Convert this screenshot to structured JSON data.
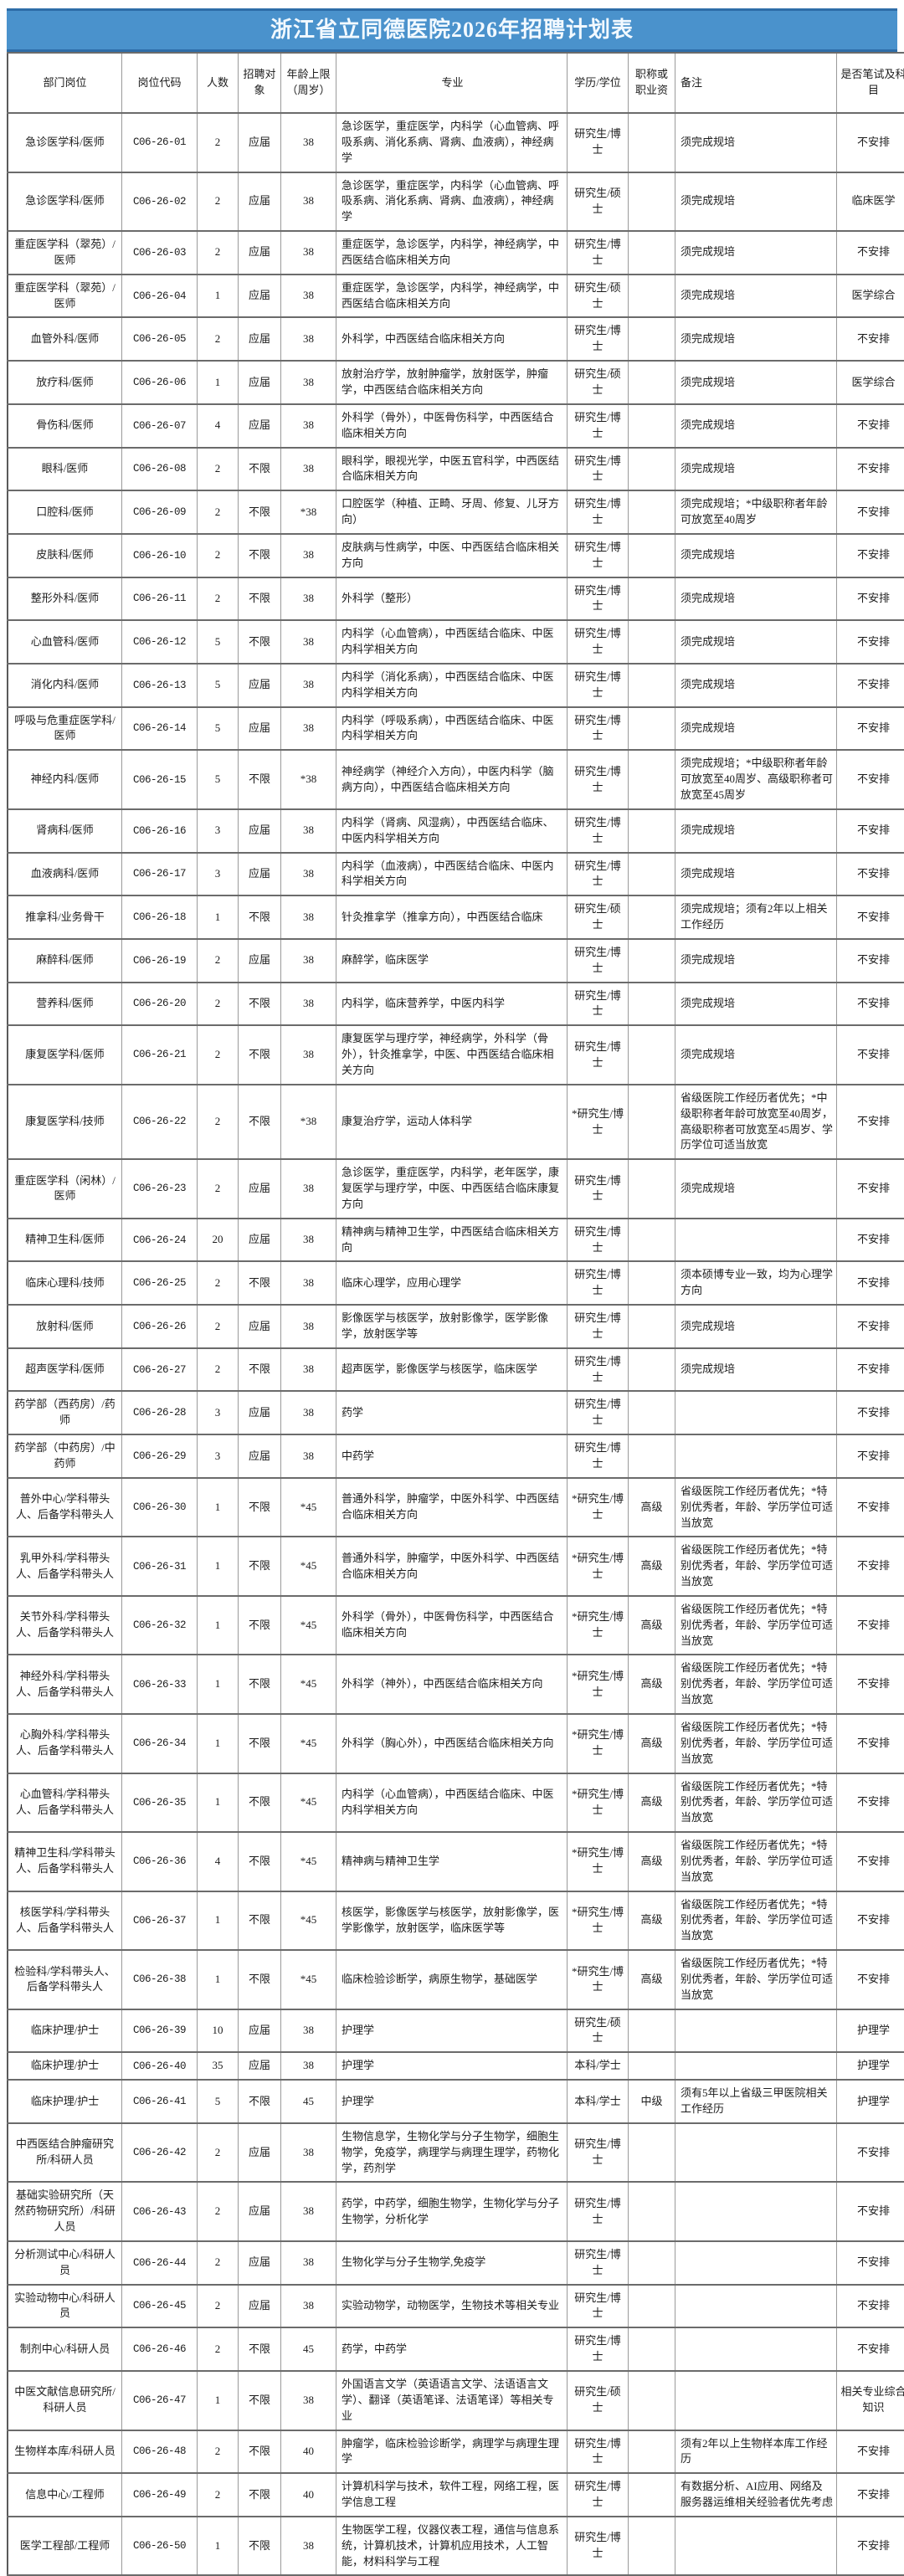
{
  "title": "浙江省立同德医院2026年招聘计划表",
  "accent_color": "#4a92cc",
  "table": {
    "columns": [
      {
        "key": "department-position",
        "label": "部门岗位"
      },
      {
        "key": "position-code",
        "label": "岗位代码"
      },
      {
        "key": "headcount",
        "label": "人数"
      },
      {
        "key": "recruit-target",
        "label": "招聘对象"
      },
      {
        "key": "age-limit",
        "label": "年龄上限（周岁）"
      },
      {
        "key": "major",
        "label": "专业"
      },
      {
        "key": "degree",
        "label": "学历/学位"
      },
      {
        "key": "title-requirement",
        "label": "职称或职业资"
      },
      {
        "key": "remark",
        "label": "备注"
      },
      {
        "key": "written-exam",
        "label": "是否笔试及科目"
      }
    ],
    "rows": [
      [
        "急诊医学科/医师",
        "C06-26-01",
        "2",
        "应届",
        "38",
        "急诊医学，重症医学，内科学（心血管病、呼吸系病、消化系病、肾病、血液病），神经病学",
        "研究生/博士",
        "",
        "须完成规培",
        "不安排"
      ],
      [
        "急诊医学科/医师",
        "C06-26-02",
        "2",
        "应届",
        "38",
        "急诊医学，重症医学，内科学（心血管病、呼吸系病、消化系病、肾病、血液病），神经病学",
        "研究生/硕士",
        "",
        "须完成规培",
        "临床医学"
      ],
      [
        "重症医学科（翠苑）/医师",
        "C06-26-03",
        "2",
        "应届",
        "38",
        "重症医学，急诊医学，内科学，神经病学，中西医结合临床相关方向",
        "研究生/博士",
        "",
        "须完成规培",
        "不安排"
      ],
      [
        "重症医学科（翠苑）/医师",
        "C06-26-04",
        "1",
        "应届",
        "38",
        "重症医学，急诊医学，内科学，神经病学，中西医结合临床相关方向",
        "研究生/硕士",
        "",
        "须完成规培",
        "医学综合"
      ],
      [
        "血管外科/医师",
        "C06-26-05",
        "2",
        "应届",
        "38",
        "外科学，中西医结合临床相关方向",
        "研究生/博士",
        "",
        "须完成规培",
        "不安排"
      ],
      [
        "放疗科/医师",
        "C06-26-06",
        "1",
        "应届",
        "38",
        "放射治疗学，放射肿瘤学，放射医学，肿瘤学，中西医结合临床相关方向",
        "研究生/硕士",
        "",
        "须完成规培",
        "医学综合"
      ],
      [
        "骨伤科/医师",
        "C06-26-07",
        "4",
        "应届",
        "38",
        "外科学（骨外），中医骨伤科学，中西医结合临床相关方向",
        "研究生/博士",
        "",
        "须完成规培",
        "不安排"
      ],
      [
        "眼科/医师",
        "C06-26-08",
        "2",
        "不限",
        "38",
        "眼科学，眼视光学，中医五官科学，中西医结合临床相关方向",
        "研究生/博士",
        "",
        "须完成规培",
        "不安排"
      ],
      [
        "口腔科/医师",
        "C06-26-09",
        "2",
        "不限",
        "*38",
        "口腔医学（种植、正畸、牙周、修复、儿牙方向）",
        "研究生/博士",
        "",
        "须完成规培；*中级职称者年龄可放宽至40周岁",
        "不安排"
      ],
      [
        "皮肤科/医师",
        "C06-26-10",
        "2",
        "不限",
        "38",
        "皮肤病与性病学，中医、中西医结合临床相关方向",
        "研究生/博士",
        "",
        "须完成规培",
        "不安排"
      ],
      [
        "整形外科/医师",
        "C06-26-11",
        "2",
        "不限",
        "38",
        "外科学（整形）",
        "研究生/博士",
        "",
        "须完成规培",
        "不安排"
      ],
      [
        "心血管科/医师",
        "C06-26-12",
        "5",
        "不限",
        "38",
        "内科学（心血管病），中西医结合临床、中医内科学相关方向",
        "研究生/博士",
        "",
        "须完成规培",
        "不安排"
      ],
      [
        "消化内科/医师",
        "C06-26-13",
        "5",
        "应届",
        "38",
        "内科学（消化系病），中西医结合临床、中医内科学相关方向",
        "研究生/博士",
        "",
        "须完成规培",
        "不安排"
      ],
      [
        "呼吸与危重症医学科/医师",
        "C06-26-14",
        "5",
        "应届",
        "38",
        "内科学（呼吸系病），中西医结合临床、中医内科学相关方向",
        "研究生/博士",
        "",
        "须完成规培",
        "不安排"
      ],
      [
        "神经内科/医师",
        "C06-26-15",
        "5",
        "不限",
        "*38",
        "神经病学（神经介入方向），中医内科学（脑病方向），中西医结合临床相关方向",
        "研究生/博士",
        "",
        "须完成规培；*中级职称者年龄可放宽至40周岁、高级职称者可放宽至45周岁",
        "不安排"
      ],
      [
        "肾病科/医师",
        "C06-26-16",
        "3",
        "应届",
        "38",
        "内科学（肾病、风湿病），中西医结合临床、中医内科学相关方向",
        "研究生/博士",
        "",
        "须完成规培",
        "不安排"
      ],
      [
        "血液病科/医师",
        "C06-26-17",
        "3",
        "应届",
        "38",
        "内科学（血液病），中西医结合临床、中医内科学相关方向",
        "研究生/博士",
        "",
        "须完成规培",
        "不安排"
      ],
      [
        "推拿科/业务骨干",
        "C06-26-18",
        "1",
        "不限",
        "38",
        "针灸推拿学（推拿方向），中西医结合临床",
        "研究生/硕士",
        "",
        "须完成规培；须有2年以上相关工作经历",
        "不安排"
      ],
      [
        "麻醉科/医师",
        "C06-26-19",
        "2",
        "应届",
        "38",
        "麻醉学，临床医学",
        "研究生/博士",
        "",
        "须完成规培",
        "不安排"
      ],
      [
        "营养科/医师",
        "C06-26-20",
        "2",
        "不限",
        "38",
        "内科学，临床营养学，中医内科学",
        "研究生/博士",
        "",
        "须完成规培",
        "不安排"
      ],
      [
        "康复医学科/医师",
        "C06-26-21",
        "2",
        "不限",
        "38",
        "康复医学与理疗学，神经病学，外科学（骨外），针灸推拿学，中医、中西医结合临床相关方向",
        "研究生/博士",
        "",
        "须完成规培",
        "不安排"
      ],
      [
        "康复医学科/技师",
        "C06-26-22",
        "2",
        "不限",
        "*38",
        "康复治疗学，运动人体科学",
        "*研究生/博士",
        "",
        "省级医院工作经历者优先；*中级职称者年龄可放宽至40周岁，高级职称者可放宽至45周岁、学历学位可适当放宽",
        "不安排"
      ],
      [
        "重症医学科（闲林）/医师",
        "C06-26-23",
        "2",
        "应届",
        "38",
        "急诊医学，重症医学，内科学，老年医学，康复医学与理疗学，中医、中西医结合临床康复方向",
        "研究生/博士",
        "",
        "须完成规培",
        "不安排"
      ],
      [
        "精神卫生科/医师",
        "C06-26-24",
        "20",
        "应届",
        "38",
        "精神病与精神卫生学，中西医结合临床相关方向",
        "研究生/博士",
        "",
        "",
        "不安排"
      ],
      [
        "临床心理科/技师",
        "C06-26-25",
        "2",
        "不限",
        "38",
        "临床心理学，应用心理学",
        "研究生/博士",
        "",
        "须本硕博专业一致，均为心理学方向",
        "不安排"
      ],
      [
        "放射科/医师",
        "C06-26-26",
        "2",
        "应届",
        "38",
        "影像医学与核医学，放射影像学，医学影像学，放射医学等",
        "研究生/博士",
        "",
        "须完成规培",
        "不安排"
      ],
      [
        "超声医学科/医师",
        "C06-26-27",
        "2",
        "不限",
        "38",
        "超声医学，影像医学与核医学，临床医学",
        "研究生/博士",
        "",
        "须完成规培",
        "不安排"
      ],
      [
        "药学部（西药房）/药师",
        "C06-26-28",
        "3",
        "应届",
        "38",
        "药学",
        "研究生/博士",
        "",
        "",
        "不安排"
      ],
      [
        "药学部（中药房）/中药师",
        "C06-26-29",
        "3",
        "应届",
        "38",
        "中药学",
        "研究生/博士",
        "",
        "",
        "不安排"
      ],
      [
        "普外中心/学科带头人、后备学科带头人",
        "C06-26-30",
        "1",
        "不限",
        "*45",
        "普通外科学，肿瘤学，中医外科学、中西医结合临床相关方向",
        "*研究生/博士",
        "高级",
        "省级医院工作经历者优先；*特别优秀者，年龄、学历学位可适当放宽",
        "不安排"
      ],
      [
        "乳甲外科/学科带头人、后备学科带头人",
        "C06-26-31",
        "1",
        "不限",
        "*45",
        "普通外科学，肿瘤学，中医外科学、中西医结合临床相关方向",
        "*研究生/博士",
        "高级",
        "省级医院工作经历者优先；*特别优秀者，年龄、学历学位可适当放宽",
        "不安排"
      ],
      [
        "关节外科/学科带头人、后备学科带头人",
        "C06-26-32",
        "1",
        "不限",
        "*45",
        "外科学（骨外），中医骨伤科学，中西医结合临床相关方向",
        "*研究生/博士",
        "高级",
        "省级医院工作经历者优先；*特别优秀者，年龄、学历学位可适当放宽",
        "不安排"
      ],
      [
        "神经外科/学科带头人、后备学科带头人",
        "C06-26-33",
        "1",
        "不限",
        "*45",
        "外科学（神外），中西医结合临床相关方向",
        "*研究生/博士",
        "高级",
        "省级医院工作经历者优先；*特别优秀者，年龄、学历学位可适当放宽",
        "不安排"
      ],
      [
        "心胸外科/学科带头人、后备学科带头人",
        "C06-26-34",
        "1",
        "不限",
        "*45",
        "外科学（胸心外），中西医结合临床相关方向",
        "*研究生/博士",
        "高级",
        "省级医院工作经历者优先；*特别优秀者，年龄、学历学位可适当放宽",
        "不安排"
      ],
      [
        "心血管科/学科带头人、后备学科带头人",
        "C06-26-35",
        "1",
        "不限",
        "*45",
        "内科学（心血管病），中西医结合临床、中医内科学相关方向",
        "*研究生/博士",
        "高级",
        "省级医院工作经历者优先；*特别优秀者，年龄、学历学位可适当放宽",
        "不安排"
      ],
      [
        "精神卫生科/学科带头人、后备学科带头人",
        "C06-26-36",
        "4",
        "不限",
        "*45",
        "精神病与精神卫生学",
        "*研究生/博士",
        "高级",
        "省级医院工作经历者优先；*特别优秀者，年龄、学历学位可适当放宽",
        "不安排"
      ],
      [
        "核医学科/学科带头人、后备学科带头人",
        "C06-26-37",
        "1",
        "不限",
        "*45",
        "核医学，影像医学与核医学，放射影像学，医学影像学，放射医学，临床医学等",
        "*研究生/博士",
        "高级",
        "省级医院工作经历者优先；*特别优秀者，年龄、学历学位可适当放宽",
        "不安排"
      ],
      [
        "检验科/学科带头人、后备学科带头人",
        "C06-26-38",
        "1",
        "不限",
        "*45",
        "临床检验诊断学，病原生物学，基础医学",
        "*研究生/博士",
        "高级",
        "省级医院工作经历者优先；*特别优秀者，年龄、学历学位可适当放宽",
        "不安排"
      ],
      [
        "临床护理/护士",
        "C06-26-39",
        "10",
        "应届",
        "38",
        "护理学",
        "研究生/硕士",
        "",
        "",
        "护理学"
      ],
      [
        "临床护理/护士",
        "C06-26-40",
        "35",
        "应届",
        "38",
        "护理学",
        "本科/学士",
        "",
        "",
        "护理学"
      ],
      [
        "临床护理/护士",
        "C06-26-41",
        "5",
        "不限",
        "45",
        "护理学",
        "本科/学士",
        "中级",
        "须有5年以上省级三甲医院相关工作经历",
        "护理学"
      ],
      [
        "中西医结合肿瘤研究所/科研人员",
        "C06-26-42",
        "2",
        "应届",
        "38",
        "生物信息学，生物化学与分子生物学，细胞生物学，免疫学，病理学与病理生理学，药物化学，药剂学",
        "研究生/博士",
        "",
        "",
        "不安排"
      ],
      [
        "基础实验研究所（天然药物研究所）/科研人员",
        "C06-26-43",
        "2",
        "应届",
        "38",
        "药学，中药学，细胞生物学，生物化学与分子生物学，分析化学",
        "研究生/博士",
        "",
        "",
        "不安排"
      ],
      [
        "分析测试中心/科研人员",
        "C06-26-44",
        "2",
        "应届",
        "38",
        "生物化学与分子生物学,免疫学",
        "研究生/博士",
        "",
        "",
        "不安排"
      ],
      [
        "实验动物中心/科研人员",
        "C06-26-45",
        "2",
        "应届",
        "38",
        "实验动物学，动物医学，生物技术等相关专业",
        "研究生/博士",
        "",
        "",
        "不安排"
      ],
      [
        "制剂中心/科研人员",
        "C06-26-46",
        "2",
        "不限",
        "45",
        "药学，中药学",
        "研究生/博士",
        "",
        "",
        "不安排"
      ],
      [
        "中医文献信息研究所/科研人员",
        "C06-26-47",
        "1",
        "不限",
        "38",
        "外国语言文学（英语语言文学、法语语言文学）、翻译（英语笔译、法语笔译）等相关专业",
        "研究生/硕士",
        "",
        "",
        "相关专业综合知识"
      ],
      [
        "生物样本库/科研人员",
        "C06-26-48",
        "2",
        "不限",
        "40",
        "肿瘤学，临床检验诊断学，病理学与病理生理学",
        "研究生/博士",
        "",
        "须有2年以上生物样本库工作经历",
        "不安排"
      ],
      [
        "信息中心/工程师",
        "C06-26-49",
        "2",
        "不限",
        "40",
        "计算机科学与技术，软件工程，网络工程，医学信息工程",
        "研究生/博士",
        "",
        "有数据分析、AI应用、网络及服务器运维相关经验者优先考虑",
        "不安排"
      ],
      [
        "医学工程部/工程师",
        "C06-26-50",
        "1",
        "不限",
        "38",
        "生物医学工程，仪器仪表工程，通信与信息系统，计算机技术，计算机应用技术，人工智能，材料科学与工程",
        "研究生/博士",
        "",
        "",
        "不安排"
      ]
    ]
  }
}
